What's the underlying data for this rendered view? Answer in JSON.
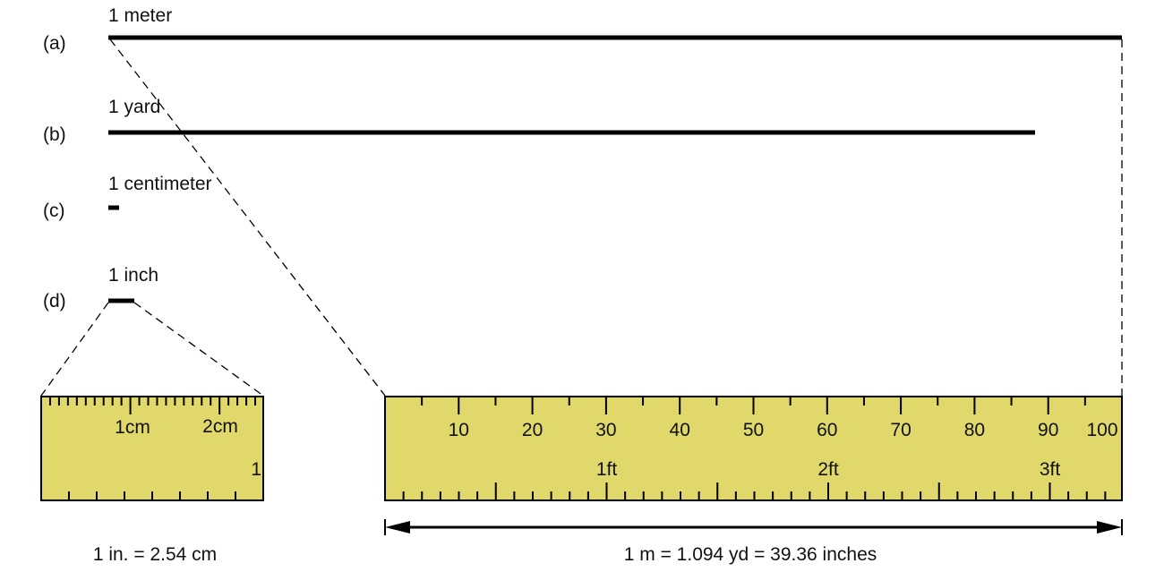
{
  "rows": [
    {
      "letter": "(a)",
      "label": "1 meter"
    },
    {
      "letter": "(b)",
      "label": "1 yard"
    },
    {
      "letter": "(c)",
      "label": "1 centimeter"
    },
    {
      "letter": "(d)",
      "label": "1 inch"
    }
  ],
  "small_ruler": {
    "labels": [
      "1cm",
      "2cm"
    ],
    "inch_label": "1",
    "caption": "1 in. = 2.54 cm"
  },
  "large_ruler": {
    "cm_labels": [
      "10",
      "20",
      "30",
      "40",
      "50",
      "60",
      "70",
      "80",
      "90",
      "100"
    ],
    "ft_labels": [
      "1ft",
      "2ft",
      "3ft"
    ],
    "caption": "1 m = 1.094 yd = 39.36 inches"
  },
  "colors": {
    "ruler_fill": "#e0d86b",
    "line": "#000000"
  }
}
